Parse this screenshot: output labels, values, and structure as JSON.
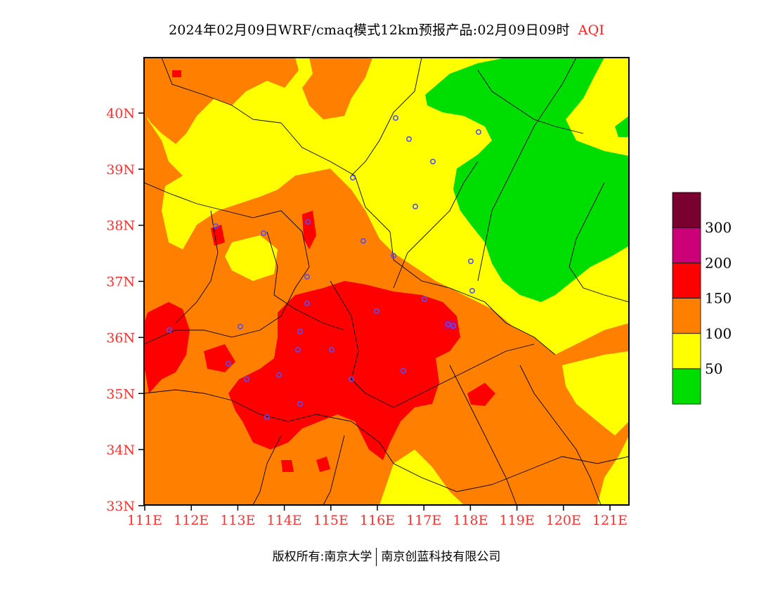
{
  "header": {
    "title": "2024年02月09日WRF/cmaq模式12km预报产品:02月09日09时",
    "variable": "AQI"
  },
  "axes": {
    "lat_labels": [
      "40N",
      "39N",
      "38N",
      "37N",
      "36N",
      "35N",
      "34N",
      "33N"
    ],
    "lon_labels": [
      "111E",
      "112E",
      "113E",
      "114E",
      "115E",
      "116E",
      "117E",
      "118E",
      "119E",
      "120E",
      "121E"
    ]
  },
  "legend": {
    "labels": [
      "300",
      "200",
      "150",
      "100",
      "50"
    ],
    "colors": [
      "#7a0030",
      "#cc0077",
      "#ff0000",
      "#ff8000",
      "#ffff00",
      "#00dd00"
    ]
  },
  "footer": {
    "left": "版权所有:南京大学",
    "right": "南京创蓝科技有限公司"
  }
}
